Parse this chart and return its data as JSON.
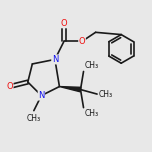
{
  "bg_color": "#e8e8e8",
  "bond_color": "#1a1a1a",
  "bond_width": 1.2,
  "atom_colors": {
    "N": "#1010ee",
    "O": "#ee1010",
    "C": "#1a1a1a"
  },
  "font_size": 6.0,
  "fig_size": [
    1.52,
    1.52
  ],
  "dpi": 100,
  "xlim": [
    0,
    1
  ],
  "ylim": [
    0.15,
    0.95
  ]
}
